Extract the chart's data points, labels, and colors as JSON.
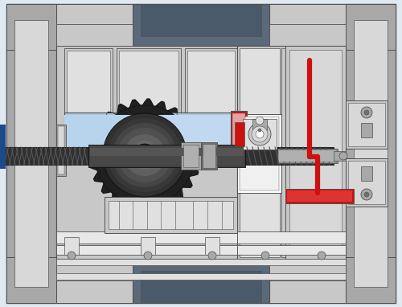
{
  "bg_color": "#e0e8f0",
  "light_gray": "#c8c8c8",
  "mid_gray": "#a8a8a8",
  "dark_gray": "#707070",
  "steel_blue": "#6b8cae",
  "light_blue": "#aac8e0",
  "blue_highlight": "#c0d8f0",
  "red": "#cc1111",
  "light_red": "#e8a0a0",
  "white": "#ffffff",
  "near_white": "#e8e8e8",
  "dark_blue_gray": "#5a6a7a",
  "darker_blue_gray": "#4a5a6a",
  "very_dark": "#1a1a1a",
  "shaft_dark": "#404040",
  "shaft_mid": "#606060",
  "shaft_light": "#909090",
  "outline_color": "#505050",
  "gear_dark": "#202020",
  "gear_mid": "#383838",
  "worm_color": "#303030",
  "frame_light": "#d8d8d8",
  "inner_light": "#e0e0e0",
  "blue_stripe": "#1a4a8a"
}
